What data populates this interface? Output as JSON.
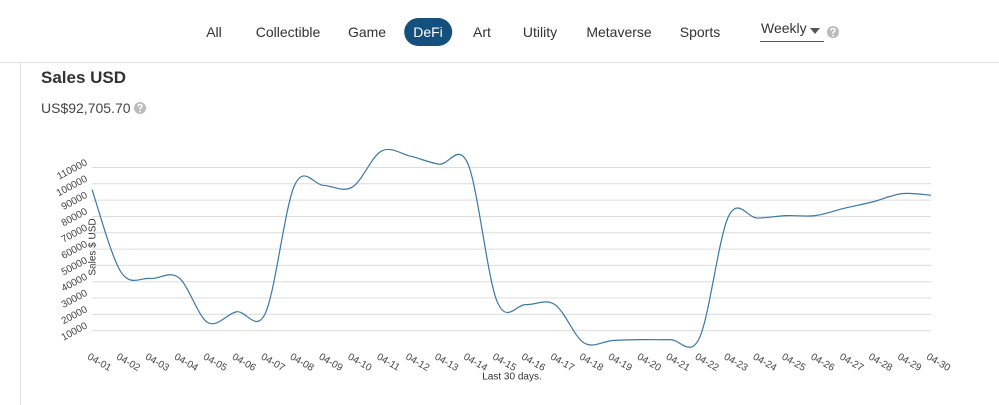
{
  "nav": {
    "tabs": [
      "All",
      "Collectible",
      "Game",
      "DeFi",
      "Art",
      "Utility",
      "Metaverse",
      "Sports"
    ],
    "period": "Weekly"
  },
  "card": {
    "title": "Sales USD",
    "total": "US$92,705.70"
  },
  "chart_data": {
    "type": "line",
    "x_label": "Last 30 days.",
    "y_label": "Sales $ USD",
    "categories": [
      "04-01",
      "04-02",
      "04-03",
      "04-04",
      "04-05",
      "04-06",
      "04-07",
      "04-08",
      "04-09",
      "04-10",
      "04-11",
      "04-12",
      "04-13",
      "04-14",
      "04-15",
      "04-16",
      "04-17",
      "04-18",
      "04-19",
      "04-20",
      "04-21",
      "04-22",
      "04-23",
      "04-24",
      "04-25",
      "04-26",
      "04-27",
      "04-28",
      "04-29",
      "04-30"
    ],
    "values": [
      96500,
      46000,
      42000,
      42500,
      15000,
      21600,
      21000,
      99000,
      99000,
      98000,
      120000,
      117000,
      112000,
      112000,
      28000,
      26000,
      26000,
      2600,
      4000,
      4500,
      4500,
      5700,
      80000,
      79000,
      80500,
      80500,
      85000,
      89000,
      94000,
      93000
    ],
    "color": "#3a78a8",
    "ylim": [
      0,
      125000
    ],
    "yticks": [
      10000,
      20000,
      30000,
      40000,
      50000,
      60000,
      70000,
      80000,
      90000,
      100000,
      110000
    ],
    "grid": true
  }
}
